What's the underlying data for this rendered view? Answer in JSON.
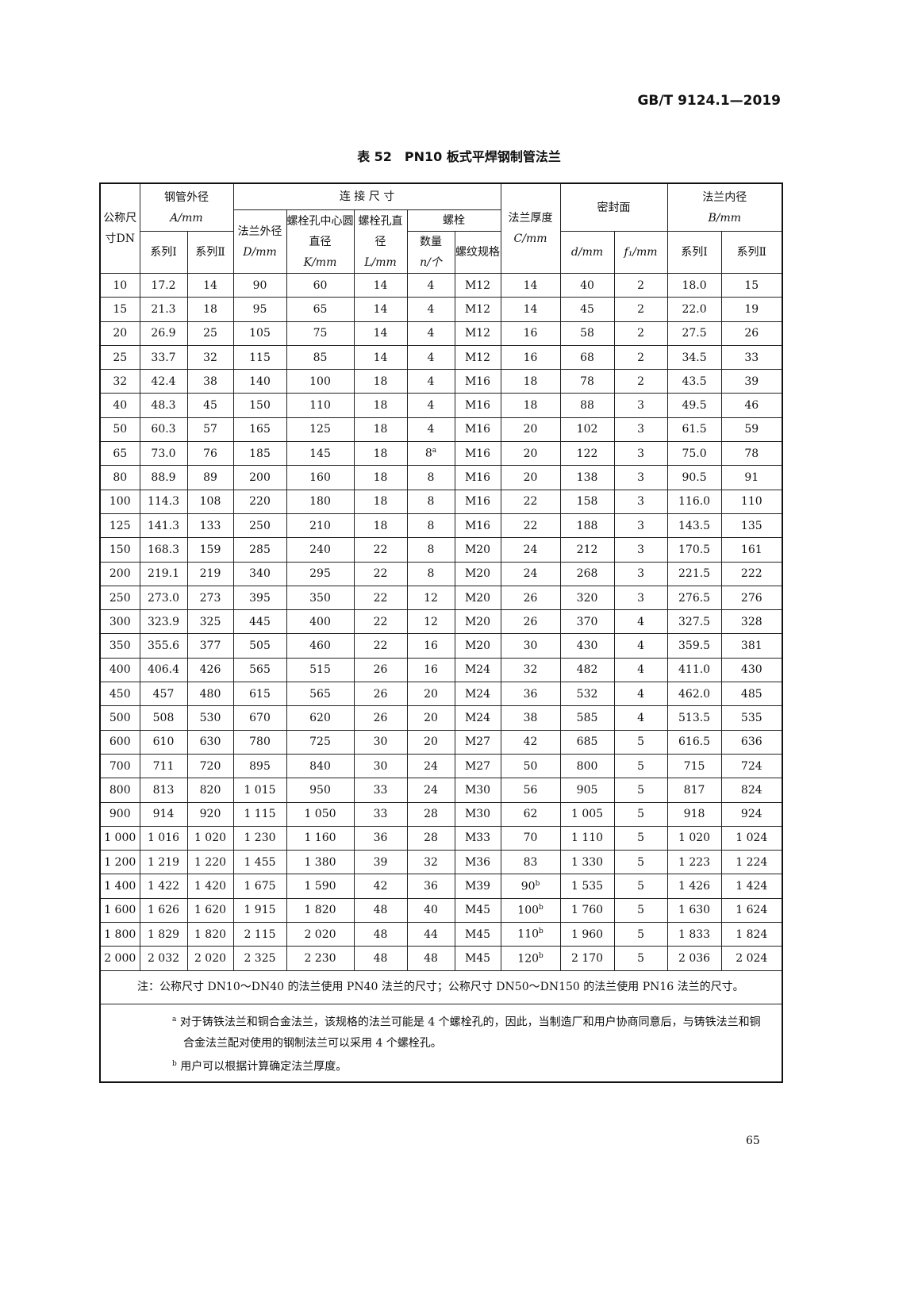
{
  "header": {
    "standard": "GB/T 9124.1—2019"
  },
  "title": "表 52　PN10 板式平焊钢制管法兰",
  "table": {
    "h": {
      "dn": "公称尺寸DN",
      "pipe": "钢管外径",
      "pipe_unit": "A/mm",
      "conn": "连 接 尺 寸",
      "D1": "法兰外径",
      "D2": "D/mm",
      "K1": "螺栓孔中心圆直径",
      "K2": "K/mm",
      "L1": "螺栓孔直径",
      "L2": "L/mm",
      "bolt": "螺栓",
      "n1": "数量",
      "n2": "n/个",
      "th1": "螺纹规格",
      "C1": "法兰厚度",
      "C2": "C/mm",
      "seal": "密封面",
      "d": "d/mm",
      "f": "f₁/mm",
      "B": "法兰内径",
      "B_unit": "B/mm",
      "s1": "系列Ⅰ",
      "s2": "系列Ⅱ"
    },
    "rows": [
      [
        "10",
        "17.2",
        "14",
        "90",
        "60",
        "14",
        "4",
        "M12",
        "14",
        "40",
        "2",
        "18.0",
        "15"
      ],
      [
        "15",
        "21.3",
        "18",
        "95",
        "65",
        "14",
        "4",
        "M12",
        "14",
        "45",
        "2",
        "22.0",
        "19"
      ],
      [
        "20",
        "26.9",
        "25",
        "105",
        "75",
        "14",
        "4",
        "M12",
        "16",
        "58",
        "2",
        "27.5",
        "26"
      ],
      [
        "25",
        "33.7",
        "32",
        "115",
        "85",
        "14",
        "4",
        "M12",
        "16",
        "68",
        "2",
        "34.5",
        "33"
      ],
      [
        "32",
        "42.4",
        "38",
        "140",
        "100",
        "18",
        "4",
        "M16",
        "18",
        "78",
        "2",
        "43.5",
        "39"
      ],
      [
        "40",
        "48.3",
        "45",
        "150",
        "110",
        "18",
        "4",
        "M16",
        "18",
        "88",
        "3",
        "49.5",
        "46"
      ],
      [
        "50",
        "60.3",
        "57",
        "165",
        "125",
        "18",
        "4",
        "M16",
        "20",
        "102",
        "3",
        "61.5",
        "59"
      ],
      [
        "65",
        "73.0",
        "76",
        "185",
        "145",
        "18",
        "8^a",
        "M16",
        "20",
        "122",
        "3",
        "75.0",
        "78"
      ],
      [
        "80",
        "88.9",
        "89",
        "200",
        "160",
        "18",
        "8",
        "M16",
        "20",
        "138",
        "3",
        "90.5",
        "91"
      ],
      [
        "100",
        "114.3",
        "108",
        "220",
        "180",
        "18",
        "8",
        "M16",
        "22",
        "158",
        "3",
        "116.0",
        "110"
      ],
      [
        "125",
        "141.3",
        "133",
        "250",
        "210",
        "18",
        "8",
        "M16",
        "22",
        "188",
        "3",
        "143.5",
        "135"
      ],
      [
        "150",
        "168.3",
        "159",
        "285",
        "240",
        "22",
        "8",
        "M20",
        "24",
        "212",
        "3",
        "170.5",
        "161"
      ],
      [
        "200",
        "219.1",
        "219",
        "340",
        "295",
        "22",
        "8",
        "M20",
        "24",
        "268",
        "3",
        "221.5",
        "222"
      ],
      [
        "250",
        "273.0",
        "273",
        "395",
        "350",
        "22",
        "12",
        "M20",
        "26",
        "320",
        "3",
        "276.5",
        "276"
      ],
      [
        "300",
        "323.9",
        "325",
        "445",
        "400",
        "22",
        "12",
        "M20",
        "26",
        "370",
        "4",
        "327.5",
        "328"
      ],
      [
        "350",
        "355.6",
        "377",
        "505",
        "460",
        "22",
        "16",
        "M20",
        "30",
        "430",
        "4",
        "359.5",
        "381"
      ],
      [
        "400",
        "406.4",
        "426",
        "565",
        "515",
        "26",
        "16",
        "M24",
        "32",
        "482",
        "4",
        "411.0",
        "430"
      ],
      [
        "450",
        "457",
        "480",
        "615",
        "565",
        "26",
        "20",
        "M24",
        "36",
        "532",
        "4",
        "462.0",
        "485"
      ],
      [
        "500",
        "508",
        "530",
        "670",
        "620",
        "26",
        "20",
        "M24",
        "38",
        "585",
        "4",
        "513.5",
        "535"
      ],
      [
        "600",
        "610",
        "630",
        "780",
        "725",
        "30",
        "20",
        "M27",
        "42",
        "685",
        "5",
        "616.5",
        "636"
      ],
      [
        "700",
        "711",
        "720",
        "895",
        "840",
        "30",
        "24",
        "M27",
        "50",
        "800",
        "5",
        "715",
        "724"
      ],
      [
        "800",
        "813",
        "820",
        "1 015",
        "950",
        "33",
        "24",
        "M30",
        "56",
        "905",
        "5",
        "817",
        "824"
      ],
      [
        "900",
        "914",
        "920",
        "1 115",
        "1 050",
        "33",
        "28",
        "M30",
        "62",
        "1 005",
        "5",
        "918",
        "924"
      ],
      [
        "1 000",
        "1 016",
        "1 020",
        "1 230",
        "1 160",
        "36",
        "28",
        "M33",
        "70",
        "1 110",
        "5",
        "1 020",
        "1 024"
      ],
      [
        "1 200",
        "1 219",
        "1 220",
        "1 455",
        "1 380",
        "39",
        "32",
        "M36",
        "83",
        "1 330",
        "5",
        "1 223",
        "1 224"
      ],
      [
        "1 400",
        "1 422",
        "1 420",
        "1 675",
        "1 590",
        "42",
        "36",
        "M39",
        "90^b",
        "1 535",
        "5",
        "1 426",
        "1 424"
      ],
      [
        "1 600",
        "1 626",
        "1 620",
        "1 915",
        "1 820",
        "48",
        "40",
        "M45",
        "100^b",
        "1 760",
        "5",
        "1 630",
        "1 624"
      ],
      [
        "1 800",
        "1 829",
        "1 820",
        "2 115",
        "2 020",
        "48",
        "44",
        "M45",
        "110^b",
        "1 960",
        "5",
        "1 833",
        "1 824"
      ],
      [
        "2 000",
        "2 032",
        "2 020",
        "2 325",
        "2 230",
        "48",
        "48",
        "M45",
        "120^b",
        "2 170",
        "5",
        "2 036",
        "2 024"
      ]
    ],
    "note": "注：公称尺寸 DN10～DN40 的法兰使用 PN40 法兰的尺寸；公称尺寸 DN50～DN150 的法兰使用 PN16 法兰的尺寸。",
    "fn_a_mark": "a",
    "fn_a": "对于铸铁法兰和铜合金法兰，该规格的法兰可能是 4 个螺栓孔的，因此，当制造厂和用户协商同意后，与铸铁法兰和铜合金法兰配对使用的钢制法兰可以采用 4 个螺栓孔。",
    "fn_b_mark": "b",
    "fn_b": "用户可以根据计算确定法兰厚度。"
  },
  "page_number": "65"
}
